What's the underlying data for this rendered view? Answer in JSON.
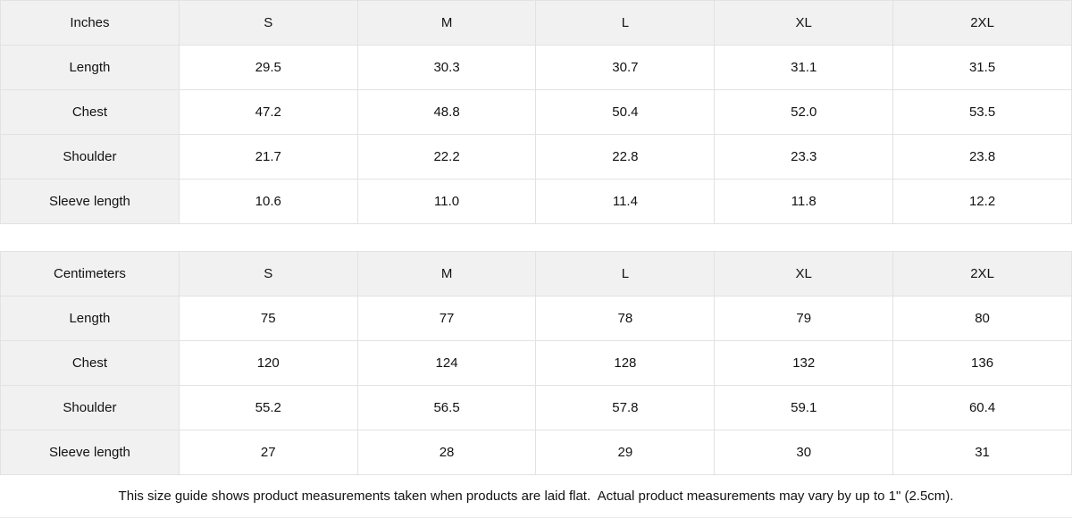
{
  "colors": {
    "header_bg": "#f1f1f1",
    "border": "#e2e2e2",
    "text": "#121212",
    "background": "#ffffff"
  },
  "tables": [
    {
      "unit_label": "Inches",
      "sizes": [
        "S",
        "M",
        "L",
        "XL",
        "2XL"
      ],
      "rows": [
        {
          "label": "Length",
          "values": [
            "29.5",
            "30.3",
            "30.7",
            "31.1",
            "31.5"
          ]
        },
        {
          "label": "Chest",
          "values": [
            "47.2",
            "48.8",
            "50.4",
            "52.0",
            "53.5"
          ]
        },
        {
          "label": "Shoulder",
          "values": [
            "21.7",
            "22.2",
            "22.8",
            "23.3",
            "23.8"
          ]
        },
        {
          "label": "Sleeve length",
          "values": [
            "10.6",
            "11.0",
            "11.4",
            "11.8",
            "12.2"
          ]
        }
      ]
    },
    {
      "unit_label": "Centimeters",
      "sizes": [
        "S",
        "M",
        "L",
        "XL",
        "2XL"
      ],
      "rows": [
        {
          "label": "Length",
          "values": [
            "75",
            "77",
            "78",
            "79",
            "80"
          ]
        },
        {
          "label": "Chest",
          "values": [
            "120",
            "124",
            "128",
            "132",
            "136"
          ]
        },
        {
          "label": "Shoulder",
          "values": [
            "55.2",
            "56.5",
            "57.8",
            "59.1",
            "60.4"
          ]
        },
        {
          "label": "Sleeve length",
          "values": [
            "27",
            "28",
            "29",
            "30",
            "31"
          ]
        }
      ]
    }
  ],
  "footer": {
    "note": "This size guide shows product measurements taken when products are laid flat.  Actual product measurements may vary by up to 1\" (2.5cm)."
  }
}
